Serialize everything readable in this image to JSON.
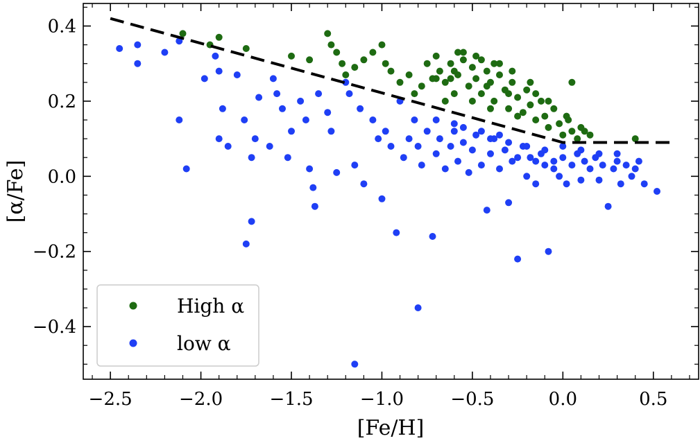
{
  "chart_data": {
    "type": "scatter",
    "title": "",
    "xlabel": "[Fe/H]",
    "ylabel": "[α/Fe]",
    "xlim": [
      -2.65,
      0.75
    ],
    "ylim": [
      -0.54,
      0.46
    ],
    "x_ticks": [
      -2.5,
      -2.0,
      -1.5,
      -1.0,
      -0.5,
      0.0,
      0.5
    ],
    "x_tick_labels": [
      "−2.5",
      "−2.0",
      "−1.5",
      "−1.0",
      "−0.5",
      "0.0",
      "0.5"
    ],
    "y_ticks": [
      -0.4,
      -0.2,
      0.0,
      0.2,
      0.4
    ],
    "y_tick_labels": [
      "−0.4",
      "−0.2",
      "0.0",
      "0.2",
      "0.4"
    ],
    "legend_position": "bottom-left",
    "grid": false,
    "divider_line": {
      "name": "high/low alpha separation",
      "style": "dashed",
      "color": "#000000",
      "x": [
        -2.5,
        0.0,
        0.6
      ],
      "y": [
        0.42,
        0.09,
        0.09
      ]
    },
    "series": [
      {
        "name": "High α",
        "color": "#1e6b12",
        "points": [
          [
            -2.1,
            0.38
          ],
          [
            -1.95,
            0.35
          ],
          [
            -1.9,
            0.37
          ],
          [
            -1.75,
            0.34
          ],
          [
            -1.5,
            0.32
          ],
          [
            -1.4,
            0.31
          ],
          [
            -1.3,
            0.38
          ],
          [
            -1.28,
            0.35
          ],
          [
            -1.25,
            0.33
          ],
          [
            -1.22,
            0.3
          ],
          [
            -1.2,
            0.27
          ],
          [
            -1.15,
            0.29
          ],
          [
            -1.1,
            0.31
          ],
          [
            -1.05,
            0.33
          ],
          [
            -1.0,
            0.35
          ],
          [
            -0.98,
            0.3
          ],
          [
            -0.95,
            0.28
          ],
          [
            -0.9,
            0.25
          ],
          [
            -0.85,
            0.27
          ],
          [
            -0.82,
            0.22
          ],
          [
            -0.78,
            0.24
          ],
          [
            -0.75,
            0.3
          ],
          [
            -0.72,
            0.26
          ],
          [
            -0.7,
            0.32
          ],
          [
            -0.68,
            0.28
          ],
          [
            -0.65,
            0.25
          ],
          [
            -0.62,
            0.3
          ],
          [
            -0.6,
            0.22
          ],
          [
            -0.58,
            0.27
          ],
          [
            -0.55,
            0.31
          ],
          [
            -0.52,
            0.24
          ],
          [
            -0.5,
            0.29
          ],
          [
            -0.48,
            0.26
          ],
          [
            -0.45,
            0.22
          ],
          [
            -0.42,
            0.28
          ],
          [
            -0.4,
            0.25
          ],
          [
            -0.38,
            0.2
          ],
          [
            -0.35,
            0.27
          ],
          [
            -0.32,
            0.23
          ],
          [
            -0.3,
            0.18
          ],
          [
            -0.28,
            0.25
          ],
          [
            -0.25,
            0.21
          ],
          [
            -0.22,
            0.17
          ],
          [
            -0.2,
            0.23
          ],
          [
            -0.18,
            0.19
          ],
          [
            -0.15,
            0.15
          ],
          [
            -0.12,
            0.2
          ],
          [
            -0.1,
            0.16
          ],
          [
            -0.08,
            0.13
          ],
          [
            -0.05,
            0.18
          ],
          [
            -0.02,
            0.14
          ],
          [
            0.0,
            0.11
          ],
          [
            0.03,
            0.15
          ],
          [
            0.05,
            0.12
          ],
          [
            0.08,
            0.1
          ],
          [
            0.1,
            0.13
          ],
          [
            0.15,
            0.11
          ],
          [
            0.05,
            0.25
          ],
          [
            0.4,
            0.1
          ],
          [
            -0.55,
            0.33
          ],
          [
            -0.45,
            0.31
          ],
          [
            -0.35,
            0.3
          ],
          [
            -0.6,
            0.28
          ],
          [
            -0.7,
            0.26
          ],
          [
            -0.5,
            0.2
          ],
          [
            -0.4,
            0.18
          ],
          [
            -0.3,
            0.22
          ],
          [
            -0.25,
            0.16
          ],
          [
            -0.15,
            0.22
          ],
          [
            -0.65,
            0.2
          ],
          [
            -0.58,
            0.33
          ],
          [
            -0.48,
            0.32
          ],
          [
            -0.38,
            0.3
          ],
          [
            -0.28,
            0.28
          ],
          [
            -0.18,
            0.25
          ],
          [
            -0.08,
            0.2
          ],
          [
            0.02,
            0.16
          ],
          [
            0.12,
            0.12
          ],
          [
            -0.62,
            0.26
          ],
          [
            -0.42,
            0.24
          ]
        ]
      },
      {
        "name": "low α",
        "color": "#1f3ff5",
        "points": [
          [
            -2.45,
            0.34
          ],
          [
            -2.35,
            0.35
          ],
          [
            -2.35,
            0.3
          ],
          [
            -2.2,
            0.33
          ],
          [
            -2.12,
            0.36
          ],
          [
            -2.12,
            0.15
          ],
          [
            -2.08,
            0.02
          ],
          [
            -1.98,
            0.26
          ],
          [
            -1.92,
            0.32
          ],
          [
            -1.9,
            0.28
          ],
          [
            -1.9,
            0.1
          ],
          [
            -1.88,
            0.18
          ],
          [
            -1.85,
            0.08
          ],
          [
            -1.8,
            0.27
          ],
          [
            -1.76,
            0.15
          ],
          [
            -1.75,
            -0.18
          ],
          [
            -1.72,
            0.05
          ],
          [
            -1.72,
            -0.12
          ],
          [
            -1.7,
            0.1
          ],
          [
            -1.68,
            0.21
          ],
          [
            -1.62,
            0.08
          ],
          [
            -1.6,
            0.26
          ],
          [
            -1.58,
            0.22
          ],
          [
            -1.55,
            0.18
          ],
          [
            -1.52,
            0.05
          ],
          [
            -1.5,
            0.12
          ],
          [
            -1.45,
            0.2
          ],
          [
            -1.42,
            0.15
          ],
          [
            -1.4,
            0.02
          ],
          [
            -1.38,
            -0.03
          ],
          [
            -1.37,
            -0.08
          ],
          [
            -1.35,
            0.22
          ],
          [
            -1.3,
            0.17
          ],
          [
            -1.28,
            0.12
          ],
          [
            -1.25,
            0.01
          ],
          [
            -1.2,
            0.25
          ],
          [
            -1.18,
            0.22
          ],
          [
            -1.15,
            -0.5
          ],
          [
            -1.15,
            0.03
          ],
          [
            -1.12,
            0.18
          ],
          [
            -1.1,
            -0.02
          ],
          [
            -1.05,
            0.15
          ],
          [
            -1.02,
            0.1
          ],
          [
            -1.0,
            -0.06
          ],
          [
            -0.98,
            0.12
          ],
          [
            -0.95,
            0.08
          ],
          [
            -0.92,
            -0.15
          ],
          [
            -0.9,
            0.2
          ],
          [
            -0.88,
            0.05
          ],
          [
            -0.85,
            0.1
          ],
          [
            -0.82,
            0.15
          ],
          [
            -0.8,
            -0.35
          ],
          [
            -0.8,
            0.08
          ],
          [
            -0.78,
            0.03
          ],
          [
            -0.75,
            0.12
          ],
          [
            -0.72,
            -0.16
          ],
          [
            -0.7,
            0.06
          ],
          [
            -0.68,
            0.1
          ],
          [
            -0.65,
            0.02
          ],
          [
            -0.62,
            0.08
          ],
          [
            -0.6,
            0.12
          ],
          [
            -0.58,
            0.04
          ],
          [
            -0.55,
            0.09
          ],
          [
            -0.52,
            0.01
          ],
          [
            -0.5,
            0.07
          ],
          [
            -0.48,
            0.11
          ],
          [
            -0.45,
            0.03
          ],
          [
            -0.42,
            -0.09
          ],
          [
            -0.4,
            0.06
          ],
          [
            -0.38,
            0.1
          ],
          [
            -0.35,
            0.02
          ],
          [
            -0.32,
            0.07
          ],
          [
            -0.3,
            -0.07
          ],
          [
            -0.28,
            0.04
          ],
          [
            -0.25,
            -0.22
          ],
          [
            -0.22,
            0.08
          ],
          [
            -0.2,
            0.0
          ],
          [
            -0.18,
            0.05
          ],
          [
            -0.15,
            -0.02
          ],
          [
            -0.12,
            0.06
          ],
          [
            -0.1,
            0.03
          ],
          [
            -0.08,
            -0.2
          ],
          [
            -0.05,
            0.04
          ],
          [
            -0.02,
            0.0
          ],
          [
            0.0,
            0.05
          ],
          [
            0.02,
            -0.02
          ],
          [
            0.05,
            0.03
          ],
          [
            0.08,
            0.06
          ],
          [
            0.1,
            -0.01
          ],
          [
            0.12,
            0.04
          ],
          [
            0.15,
            0.02
          ],
          [
            0.18,
            0.05
          ],
          [
            0.2,
            -0.01
          ],
          [
            0.22,
            0.03
          ],
          [
            0.25,
            -0.08
          ],
          [
            0.28,
            0.02
          ],
          [
            0.3,
            0.04
          ],
          [
            0.32,
            -0.02
          ],
          [
            0.35,
            0.03
          ],
          [
            0.38,
            0.0
          ],
          [
            0.4,
            0.02
          ],
          [
            0.42,
            0.04
          ],
          [
            0.45,
            -0.02
          ],
          [
            0.52,
            -0.04
          ],
          [
            -0.3,
            0.09
          ],
          [
            -0.2,
            0.08
          ],
          [
            -0.1,
            0.07
          ],
          [
            0.0,
            0.08
          ],
          [
            0.1,
            0.07
          ],
          [
            0.2,
            0.06
          ],
          [
            0.3,
            0.06
          ],
          [
            -0.4,
            0.1
          ],
          [
            -0.6,
            0.14
          ],
          [
            -0.7,
            0.15
          ],
          [
            -0.55,
            0.13
          ],
          [
            -0.45,
            0.12
          ],
          [
            -0.35,
            0.11
          ],
          [
            -0.25,
            0.05
          ],
          [
            -0.15,
            0.04
          ],
          [
            -0.05,
            0.02
          ]
        ]
      }
    ]
  }
}
